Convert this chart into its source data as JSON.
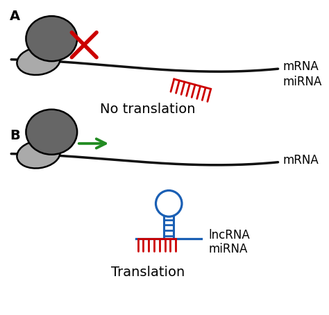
{
  "bg_color": "#ffffff",
  "label_A": "A",
  "label_B": "B",
  "label_mRNA_A": "mRNA",
  "label_miRNA_A": "miRNA",
  "label_mRNA_B": "mRNA",
  "label_lncRNA_B": "lncRNA",
  "label_miRNA_B": "miRNA",
  "label_no_translation": "No translation",
  "label_translation": "Translation",
  "ribosome_dark_color": "#666666",
  "ribosome_light_color": "#aaaaaa",
  "line_color": "#111111",
  "red_color": "#cc0000",
  "green_color": "#228B22",
  "blue_color": "#1a5fb4",
  "fontsize_label": 12,
  "fontsize_caption": 13,
  "fontsize_AB": 13
}
